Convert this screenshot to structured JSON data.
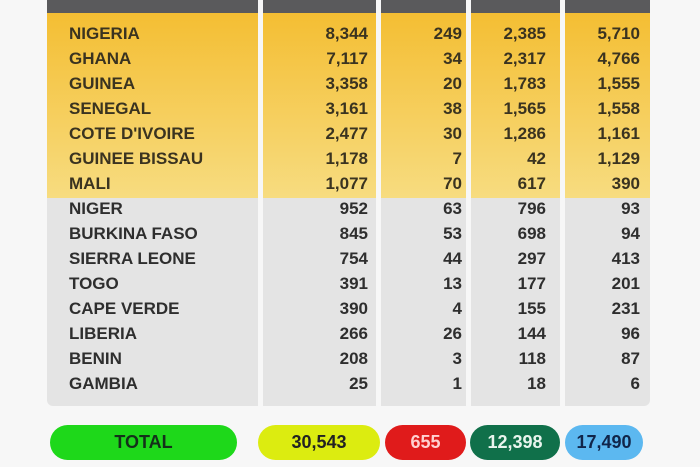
{
  "rows": [
    {
      "country": "NIGERIA",
      "c1": "8,344",
      "c2": "249",
      "c3": "2,385",
      "c4": "5,710"
    },
    {
      "country": "GHANA",
      "c1": "7,117",
      "c2": "34",
      "c3": "2,317",
      "c4": "4,766"
    },
    {
      "country": "GUINEA",
      "c1": "3,358",
      "c2": "20",
      "c3": "1,783",
      "c4": "1,555"
    },
    {
      "country": "SENEGAL",
      "c1": "3,161",
      "c2": "38",
      "c3": "1,565",
      "c4": "1,558"
    },
    {
      "country": "COTE D'IVOIRE",
      "c1": "2,477",
      "c2": "30",
      "c3": "1,286",
      "c4": "1,161"
    },
    {
      "country": "GUINEE BISSAU",
      "c1": "1,178",
      "c2": "7",
      "c3": "42",
      "c4": "1,129"
    },
    {
      "country": "MALI",
      "c1": "1,077",
      "c2": "70",
      "c3": "617",
      "c4": "390"
    },
    {
      "country": "NIGER",
      "c1": "952",
      "c2": "63",
      "c3": "796",
      "c4": "93"
    },
    {
      "country": "BURKINA FASO",
      "c1": "845",
      "c2": "53",
      "c3": "698",
      "c4": "94"
    },
    {
      "country": "SIERRA LEONE",
      "c1": "754",
      "c2": "44",
      "c3": "297",
      "c4": "413"
    },
    {
      "country": "TOGO",
      "c1": "391",
      "c2": "13",
      "c3": "177",
      "c4": "201"
    },
    {
      "country": "CAPE VERDE",
      "c1": "390",
      "c2": "4",
      "c3": "155",
      "c4": "231"
    },
    {
      "country": "LIBERIA",
      "c1": "266",
      "c2": "26",
      "c3": "144",
      "c4": "96"
    },
    {
      "country": "BENIN",
      "c1": "208",
      "c2": "3",
      "c3": "118",
      "c4": "87"
    },
    {
      "country": "GAMBIA",
      "c1": "25",
      "c2": "1",
      "c3": "18",
      "c4": "6"
    }
  ],
  "totals": {
    "label": "TOTAL",
    "c1": "30,543",
    "c2": "655",
    "c3": "12,398",
    "c4": "17,490"
  },
  "colors": {
    "header": "#5a5a5c",
    "highlight": "#f4be33",
    "rest": "#e4e4e4",
    "total_label": "#1ed81a",
    "total_c1": "#dcec10",
    "total_c2": "#e01b1b",
    "total_c3": "#10704a",
    "total_c4": "#5cb8f0"
  }
}
